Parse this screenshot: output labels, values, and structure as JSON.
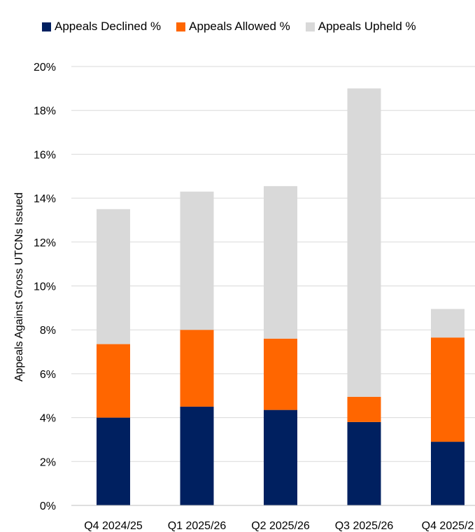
{
  "chart_data": {
    "type": "bar",
    "stacked": true,
    "categories": [
      "Q4 2024/25",
      "Q1 2025/26",
      "Q2 2025/26",
      "Q3 2025/26",
      "Q4 2025/2"
    ],
    "series": [
      {
        "name": "Appeals Declined %",
        "color": "#002060",
        "values": [
          4.0,
          4.5,
          4.35,
          3.8,
          2.9
        ]
      },
      {
        "name": "Appeals Allowed %",
        "color": "#FF6600",
        "values": [
          3.35,
          3.5,
          3.25,
          1.15,
          4.75
        ]
      },
      {
        "name": "Appeals Upheld %",
        "color": "#D9D9D9",
        "values": [
          6.15,
          6.3,
          6.95,
          14.05,
          1.3
        ]
      }
    ],
    "ylabel": "Appeals Against Gross UTCNs Issued",
    "xlabel": "",
    "ylim": [
      0,
      20
    ],
    "yticks": [
      "0%",
      "2%",
      "4%",
      "6%",
      "8%",
      "10%",
      "12%",
      "14%",
      "16%",
      "18%",
      "20%"
    ],
    "ytick_values": [
      0,
      2,
      4,
      6,
      8,
      10,
      12,
      14,
      16,
      18,
      20
    ],
    "grid": true,
    "legend_position": "top"
  }
}
